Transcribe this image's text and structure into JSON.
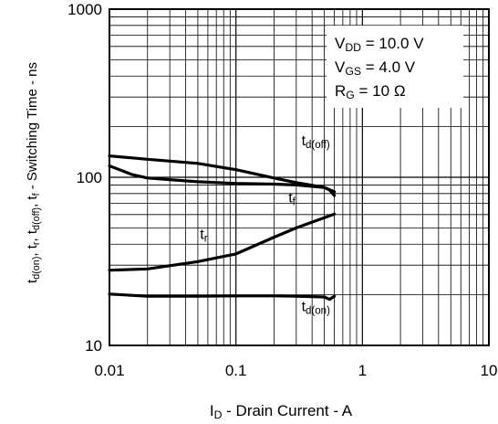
{
  "chart_data": {
    "type": "line",
    "xscale": "log",
    "yscale": "log",
    "xlim": [
      0.01,
      10
    ],
    "ylim": [
      10,
      1000
    ],
    "grid": true,
    "xlabel": {
      "main": "I",
      "sub": "D",
      "rest": " - Drain Current - A"
    },
    "ylabel": "t d(on), t r, t d(off), t f - Switching Time - ns",
    "ylabel_parts": [
      {
        "t": "t",
        "sub": "d(on)"
      },
      {
        "t": ", t",
        "sub": "r"
      },
      {
        "t": ", t",
        "sub": "d(off)"
      },
      {
        "t": ", t",
        "sub": "f"
      },
      {
        "t": " - Switching Time - ns"
      }
    ],
    "xticks": [
      {
        "v": 0.01,
        "label": "0.01"
      },
      {
        "v": 0.1,
        "label": "0.1"
      },
      {
        "v": 1,
        "label": "1"
      },
      {
        "v": 10,
        "label": "10"
      }
    ],
    "yticks": [
      {
        "v": 10,
        "label": "10"
      },
      {
        "v": 100,
        "label": "100"
      },
      {
        "v": 1000,
        "label": "1000"
      }
    ],
    "conditions": [
      {
        "main": "V",
        "sub": "DD",
        "rest": " = 10.0 V"
      },
      {
        "main": "V",
        "sub": "GS",
        "rest": " = 4.0 V"
      },
      {
        "main": "R",
        "sub": "G",
        "rest": " = 10 Ω"
      }
    ],
    "series": [
      {
        "name": "td(off)",
        "label_main": "t",
        "label_sub": "d(off)",
        "label_at": [
          0.33,
          155
        ],
        "x": [
          0.01,
          0.02,
          0.05,
          0.1,
          0.2,
          0.3,
          0.5,
          0.6
        ],
        "y": [
          134,
          128,
          121,
          111,
          99,
          93,
          87,
          82
        ]
      },
      {
        "name": "tf",
        "label_main": "t",
        "label_sub": "f",
        "label_at": [
          0.26,
          71
        ],
        "x": [
          0.01,
          0.015,
          0.02,
          0.05,
          0.1,
          0.2,
          0.3,
          0.5,
          0.55,
          0.6
        ],
        "y": [
          117,
          104,
          99,
          94,
          92,
          91,
          90,
          87,
          84,
          78
        ]
      },
      {
        "name": "tr",
        "label_main": "t",
        "label_sub": "r",
        "label_at": [
          0.052,
          43
        ],
        "x": [
          0.01,
          0.02,
          0.05,
          0.1,
          0.2,
          0.3,
          0.5,
          0.6
        ],
        "y": [
          28,
          28.5,
          31.5,
          35,
          44,
          50,
          57.5,
          60.5
        ]
      },
      {
        "name": "td(on)",
        "label_main": "t",
        "label_sub": "d(on)",
        "label_at": [
          0.33,
          16
        ],
        "x": [
          0.01,
          0.02,
          0.05,
          0.1,
          0.2,
          0.3,
          0.5,
          0.55,
          0.6
        ],
        "y": [
          20.2,
          19.6,
          19.6,
          19.7,
          19.7,
          19.6,
          19.4,
          18.8,
          19.6
        ]
      }
    ]
  }
}
